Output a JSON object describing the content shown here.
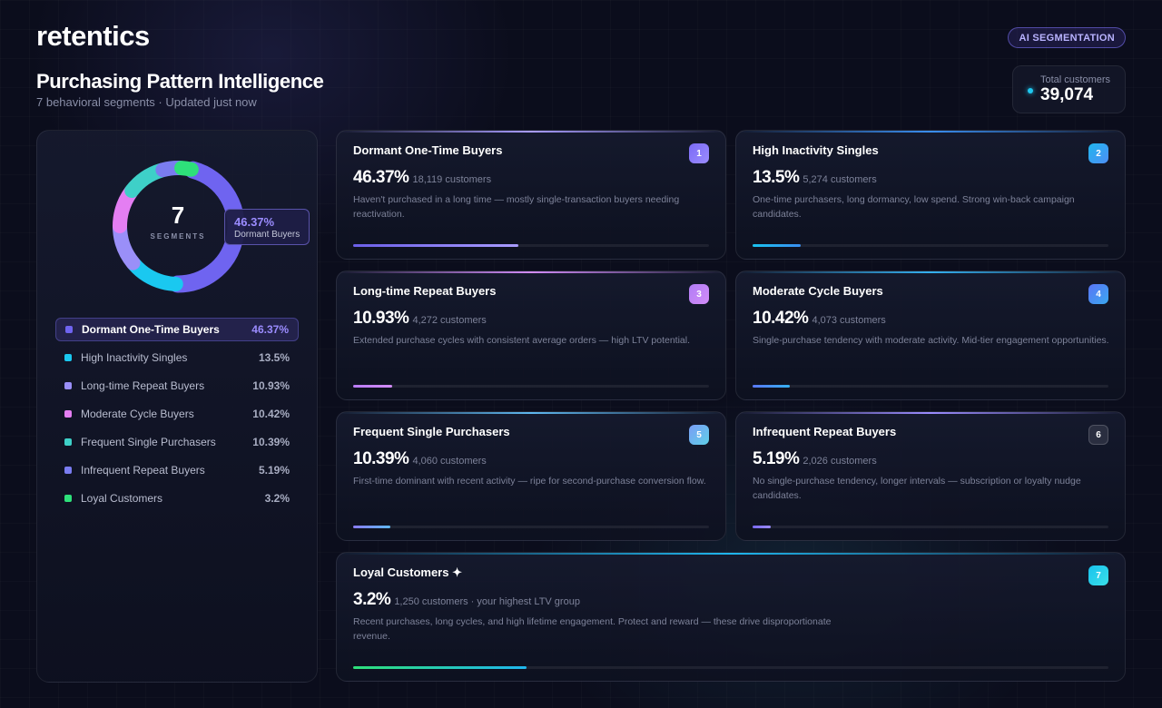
{
  "brand": {
    "logo": "retentics",
    "badge": "AI SEGMENTATION"
  },
  "header": {
    "title": "Purchasing Pattern Intelligence",
    "subtitle": "7 behavioral segments · Updated just now"
  },
  "total": {
    "label": "Total customers",
    "value": "39,074"
  },
  "donut": {
    "center_number": "7",
    "center_label": "SEGMENTS",
    "tooltip_pct": "46.37%",
    "tooltip_name": "Dormant Buyers"
  },
  "segments": [
    {
      "name": "Dormant One-Time Buyers",
      "pct": "46.37%",
      "share": 0.4637,
      "customers": "18,119 customers",
      "number": "1",
      "desc": "Haven't purchased in a long time — mostly single-transaction buyers needing reactivation.",
      "color": "#6f64f0",
      "bar": [
        "#6b5fe8",
        "#a99cff"
      ],
      "badge": [
        "#7a6af5",
        "#9b8cff"
      ],
      "active": true
    },
    {
      "name": "High Inactivity Singles",
      "pct": "13.5%",
      "share": 0.135,
      "customers": "5,274 customers",
      "number": "2",
      "desc": "One-time purchasers, long dormancy, low spend. Strong win-back campaign candidates.",
      "color": "#1ac8f0",
      "bar": [
        "#19c2ee",
        "#3a8ef0"
      ],
      "badge": [
        "#1fb6ee",
        "#4e8ef5"
      ],
      "active": false
    },
    {
      "name": "Long-time Repeat Buyers",
      "pct": "10.93%",
      "share": 0.1093,
      "customers": "4,272 customers",
      "number": "3",
      "desc": "Extended purchase cycles with consistent average orders — high LTV potential.",
      "color": "#9a8ff8",
      "bar": [
        "#b97cf5",
        "#d28cf8"
      ],
      "badge": [
        "#b07cf5",
        "#d28cf8"
      ],
      "active": false
    },
    {
      "name": "Moderate Cycle Buyers",
      "pct": "10.42%",
      "share": 0.1042,
      "customers": "4,073 customers",
      "number": "4",
      "desc": "Single-purchase tendency with moderate activity. Mid-tier engagement opportunities.",
      "color": "#e47ef2",
      "bar": [
        "#5a78f5",
        "#35b0f0"
      ],
      "badge": [
        "#5a74f5",
        "#3aa8f0"
      ],
      "active": false
    },
    {
      "name": "Frequent Single Purchasers",
      "pct": "10.39%",
      "share": 0.1039,
      "customers": "4,060 customers",
      "number": "5",
      "desc": "First-time dominant with recent activity — ripe for second-purchase conversion flow.",
      "color": "#3ed0c8",
      "bar": [
        "#8a7cf5",
        "#5fb8f0"
      ],
      "badge": [
        "#7a9cf5",
        "#5fd0e8"
      ],
      "active": false
    },
    {
      "name": "Infrequent Repeat Buyers",
      "pct": "5.19%",
      "share": 0.0519,
      "customers": "2,026 customers",
      "number": "6",
      "desc": "No single-purchase tendency, longer intervals — subscription or loyalty nudge candidates.",
      "color": "#7a7cf0",
      "bar": [
        "#7a6af5",
        "#9b8cff"
      ],
      "badge": [
        "#2a2e40",
        "#2a2e40"
      ],
      "active": false
    },
    {
      "name": "Loyal Customers ✦",
      "legend_name": "Loyal Customers",
      "pct": "3.2%",
      "share": 0.032,
      "customers": "1,250 customers · your highest LTV group",
      "number": "7",
      "desc": "Recent purchases, long cycles, and high lifetime engagement. Protect and reward — these drive disproportionate revenue.",
      "color": "#2ee07a",
      "bar": [
        "#2ee07a",
        "#1fb6ee"
      ],
      "badge": [
        "#19c2ee",
        "#3ae0e8"
      ],
      "active": false
    }
  ]
}
